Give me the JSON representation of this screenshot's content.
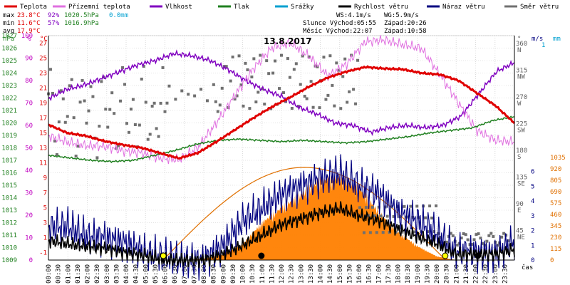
{
  "chart_data": {
    "type": "line",
    "title": "13.8.2017",
    "legend": [
      {
        "name": "Teplota",
        "color": "#e00000"
      },
      {
        "name": "Přízemní teplota",
        "color": "#e070e0"
      },
      {
        "name": "Vlhkost",
        "color": "#8000c0"
      },
      {
        "name": "Tlak",
        "color": "#208020"
      },
      {
        "name": "Srážky",
        "color": "#00a0d0"
      },
      {
        "name": "Rychlost větru",
        "color": "#000000"
      },
      {
        "name": "Náraz větru",
        "color": "#000080"
      },
      {
        "name": "Směr větru",
        "color": "#707070"
      }
    ],
    "stats": {
      "max": {
        "label": "max",
        "temp": "23.8°C",
        "hum": "92%",
        "press": "1020.5hPa",
        "rain": "0.0mm"
      },
      "min": {
        "label": "min",
        "temp": "11.6°C",
        "hum": "57%",
        "press": "1016.9hPa"
      },
      "avg": {
        "label": "avg",
        "temp": "17.9°C"
      }
    },
    "info": {
      "ws": "WS:4.1m/s",
      "wg": "WG:5.9m/s",
      "sun": "Slunce Východ:05:55",
      "sun_set": "Západ:20:26",
      "moon": "Měsíc  Východ:22:07",
      "moon_set": "Západ:10:58"
    },
    "axis_units": {
      "hpa": "hPa",
      "pct": "%",
      "degc": "°C",
      "deg": "°",
      "ms": "m/s",
      "mm": "mm",
      "xlabel": "čas"
    },
    "hpa_ticks": [
      "1009",
      "1010",
      "1011",
      "1012",
      "1013",
      "1014",
      "1015",
      "1016",
      "1017",
      "1018",
      "1019",
      "1020",
      "1021",
      "1022",
      "1023",
      "1024",
      "1025",
      "1026",
      "1027"
    ],
    "pct_ticks": [
      "0",
      "10",
      "20",
      "30",
      "40",
      "50",
      "60",
      "70",
      "80",
      "90",
      "100"
    ],
    "degc_ticks": [
      "-1",
      "1",
      "3",
      "5",
      "7",
      "9",
      "11",
      "13",
      "15",
      "17",
      "19",
      "21",
      "23",
      "25",
      "27"
    ],
    "dir_ticks": [
      {
        "deg": "45",
        "lbl": "NE"
      },
      {
        "deg": "90",
        "lbl": "E"
      },
      {
        "deg": "135",
        "lbl": "SE"
      },
      {
        "deg": "180",
        "lbl": "S"
      },
      {
        "deg": "225",
        "lbl": "SW"
      },
      {
        "deg": "270",
        "lbl": "W"
      },
      {
        "deg": "315",
        "lbl": "NW"
      },
      {
        "deg": "360",
        "lbl": "N"
      }
    ],
    "ms_ticks": [
      "0",
      "1",
      "2",
      "3",
      "4",
      "5",
      "6"
    ],
    "rad_ticks": [
      "0",
      "115",
      "230",
      "345",
      "460",
      "575",
      "690",
      "805",
      "920",
      "1035"
    ],
    "ms_top": "1",
    "time_labels": [
      "00:00",
      "00:30",
      "01:00",
      "01:30",
      "02:00",
      "02:30",
      "03:00",
      "03:30",
      "04:00",
      "04:30",
      "05:00",
      "05:30",
      "06:00",
      "06:30",
      "07:00",
      "07:30",
      "08:00",
      "08:30",
      "09:00",
      "09:30",
      "10:00",
      "10:30",
      "11:00",
      "11:30",
      "12:00",
      "12:30",
      "13:00",
      "13:30",
      "14:00",
      "14:30",
      "15:00",
      "15:30",
      "16:00",
      "16:30",
      "17:00",
      "17:30",
      "18:00",
      "18:30",
      "19:00",
      "19:30",
      "20:00",
      "20:30",
      "21:00",
      "21:30",
      "22:00",
      "22:30",
      "23:00",
      "23:30"
    ],
    "x_hours": [
      0,
      1,
      2,
      3,
      4,
      5,
      6,
      7,
      8,
      9,
      10,
      11,
      12,
      13,
      14,
      15,
      16,
      17,
      18,
      19,
      20,
      21,
      22,
      23,
      24
    ],
    "temperature_c": [
      16.1,
      15.0,
      14.6,
      13.9,
      13.4,
      13.0,
      12.3,
      11.6,
      12.3,
      13.8,
      15.4,
      17.0,
      18.5,
      19.8,
      21.2,
      22.4,
      23.2,
      23.8,
      23.6,
      23.5,
      23.0,
      22.8,
      22.0,
      20.3,
      18.6,
      16.3
    ],
    "ground_temp_c": [
      14.6,
      13.8,
      13.3,
      13.2,
      12.6,
      12.3,
      11.6,
      11.4,
      13.0,
      16.3,
      20.0,
      23.6,
      26.4,
      27.0,
      25.2,
      22.6,
      24.2,
      27.2,
      27.4,
      26.8,
      26.3,
      22.8,
      19.0,
      15.3,
      14.0,
      13.8
    ],
    "humidity_pct": [
      72,
      76,
      78,
      81,
      84,
      87,
      89,
      92,
      91,
      89,
      85,
      80,
      76,
      73,
      68,
      65,
      61,
      60,
      57,
      59,
      60,
      59,
      60,
      64,
      74,
      84,
      88
    ],
    "pressure_hpa": [
      1017.4,
      1017.2,
      1017.0,
      1016.9,
      1017.0,
      1017.4,
      1017.8,
      1018.3,
      1018.6,
      1018.7,
      1018.6,
      1018.5,
      1018.6,
      1018.5,
      1018.4,
      1018.5,
      1018.7,
      1018.9,
      1019.2,
      1019.4,
      1019.6,
      1020.2,
      1020.5
    ],
    "wind_speed_ms": [
      1.3,
      1.1,
      0.9,
      0.8,
      0.5,
      0.3,
      0,
      0,
      0,
      0.4,
      1.0,
      1.7,
      2.4,
      2.8,
      3.2,
      3.5,
      3.0,
      2.7,
      2.1,
      1.6,
      1.1,
      0.4,
      0.4,
      0.4,
      0.7
    ],
    "wind_gust_ms": [
      2.2,
      2.3,
      1.6,
      1.5,
      1.1,
      0.5,
      0.2,
      0,
      0,
      1.0,
      2.6,
      3.5,
      4.4,
      5.0,
      5.5,
      5.9,
      5.0,
      4.5,
      3.2,
      2.7,
      1.8,
      0.6,
      0.5,
      0.4,
      1.2
    ],
    "solar_wm2": [
      0,
      0,
      0,
      0,
      0,
      0,
      0,
      0,
      15,
      60,
      170,
      400,
      560,
      700,
      860,
      900,
      780,
      520,
      300,
      150,
      40,
      0,
      0,
      0,
      0
    ],
    "rain_mm": 0.0,
    "sun_events": [
      {
        "time": "05:55",
        "color": "#ffff00"
      },
      {
        "time": "20:26",
        "color": "#ffff00"
      }
    ],
    "moon_events": [
      {
        "time": "10:58",
        "color": "#000000"
      },
      {
        "time": "22:07",
        "color": "#000000"
      }
    ]
  }
}
